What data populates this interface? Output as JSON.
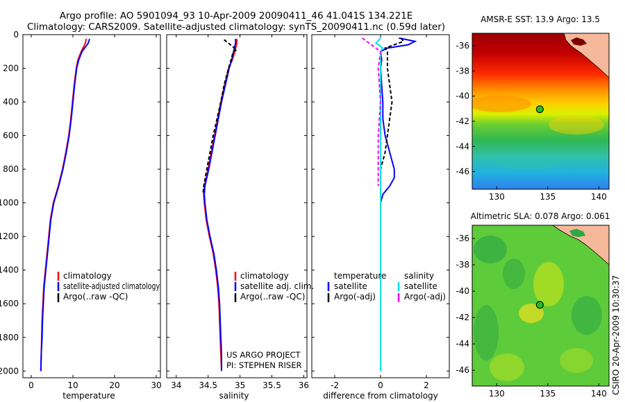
{
  "header": {
    "line1": "Argo profile: AO 5901094_93 10-Apr-2009 20090411_46 41.041S 134.221E",
    "line2": "Climatology: CARS2009. Satellite-adjusted climatology: synTS_20090411.nc (0.59d later)"
  },
  "side_label": "CSIRO 20-Apr-2009 10:30:37",
  "colors": {
    "climatology": "#ff0000",
    "satellite": "#0000ff",
    "argo": "#000000",
    "salinity_satellite": "#00e0e0",
    "salinity_argo": "#ff00ff",
    "land": "#f5b89a",
    "float_marker": "#20c020"
  },
  "depth_axis": {
    "ticks": [
      "0",
      "200",
      "400",
      "600",
      "800",
      "1000",
      "1200",
      "1400",
      "1600",
      "1800",
      "2000"
    ]
  },
  "chart_data": [
    {
      "id": "temperature",
      "type": "line",
      "xlabel": "temperature",
      "xlim": [
        -2,
        31
      ],
      "ylim": [
        0,
        2040
      ],
      "xticks": [
        "0",
        "10",
        "20",
        "30"
      ],
      "legend": [
        "climatology",
        "satellite-adjusted climatology",
        "Argo(..raw -QC)"
      ],
      "series": [
        {
          "name": "climatology",
          "color": "#ff0000",
          "depth": [
            25,
            50,
            80,
            100,
            150,
            200,
            300,
            400,
            500,
            600,
            700,
            800,
            900,
            1000,
            1100,
            1200,
            1300,
            1400,
            1500,
            1600,
            1700,
            1800,
            1900,
            2000
          ],
          "values": [
            13.2,
            13.0,
            12.4,
            12.0,
            11.2,
            10.8,
            10.3,
            9.9,
            9.5,
            9.0,
            8.3,
            7.5,
            6.5,
            5.3,
            4.6,
            4.2,
            3.8,
            3.4,
            3.0,
            2.8,
            2.6,
            2.5,
            2.4,
            2.3
          ]
        },
        {
          "name": "satellite-adjusted climatology",
          "color": "#0000ff",
          "depth": [
            25,
            50,
            80,
            100,
            150,
            200,
            300,
            400,
            500,
            600,
            700,
            800,
            900,
            1000,
            1100,
            1200,
            1300,
            1400,
            1500,
            1600,
            1700,
            1800,
            1900,
            2000
          ],
          "values": [
            14.0,
            13.7,
            12.8,
            12.2,
            11.4,
            10.9,
            10.4,
            10.0,
            9.6,
            9.1,
            8.4,
            7.6,
            6.6,
            5.4,
            4.7,
            4.3,
            3.9,
            3.5,
            3.1,
            2.9,
            2.7,
            2.6,
            2.4,
            2.3
          ]
        },
        {
          "name": "Argo(..raw -QC)",
          "color": "#000000",
          "depth": [],
          "values": []
        }
      ]
    },
    {
      "id": "salinity",
      "type": "line",
      "xlabel": "salinity",
      "xlim": [
        33.85,
        36.05
      ],
      "ylim": [
        0,
        2040
      ],
      "xticks": [
        "34",
        "34.5",
        "35",
        "35.5",
        "36"
      ],
      "legend": [
        "climatology",
        "satellite adj. clim.",
        "Argo(..raw -QC)"
      ],
      "annotation": [
        "US ARGO PROJECT",
        "PI: STEPHEN RISER"
      ],
      "series": [
        {
          "name": "climatology",
          "color": "#ff0000",
          "depth": [
            25,
            50,
            100,
            150,
            200,
            300,
            400,
            500,
            600,
            700,
            800,
            900,
            950,
            1000,
            1100,
            1200,
            1300,
            1400,
            1500,
            1600,
            1700,
            1800,
            1900,
            2000
          ],
          "values": [
            34.95,
            34.95,
            34.92,
            34.88,
            34.82,
            34.76,
            34.7,
            34.65,
            34.6,
            34.55,
            34.5,
            34.44,
            34.43,
            34.44,
            34.47,
            34.52,
            34.58,
            34.62,
            34.65,
            34.67,
            34.68,
            34.69,
            34.7,
            34.71
          ]
        },
        {
          "name": "satellite adj. clim.",
          "color": "#0000ff",
          "depth": [
            25,
            50,
            100,
            150,
            200,
            300,
            400,
            500,
            600,
            700,
            800,
            900,
            950,
            1000,
            1100,
            1200,
            1300,
            1400,
            1500,
            1600,
            1700,
            1800,
            1900,
            2000
          ],
          "values": [
            34.93,
            34.93,
            34.9,
            34.87,
            34.83,
            34.77,
            34.71,
            34.66,
            34.61,
            34.56,
            34.51,
            34.45,
            34.44,
            34.45,
            34.48,
            34.53,
            34.59,
            34.63,
            34.66,
            34.68,
            34.69,
            34.7,
            34.71,
            34.71
          ]
        },
        {
          "name": "Argo(..raw -QC)",
          "color": "#000000",
          "dash": true,
          "depth": [
            30,
            60,
            90,
            100,
            120,
            150,
            200,
            300,
            400,
            500,
            600,
            700,
            800,
            900,
            950
          ],
          "values": [
            34.75,
            34.85,
            34.95,
            34.9,
            34.88,
            34.86,
            34.82,
            34.75,
            34.7,
            34.64,
            34.58,
            34.53,
            34.48,
            34.43,
            34.42
          ]
        }
      ]
    },
    {
      "id": "difference",
      "type": "line",
      "xlabel": "difference from climatology",
      "xlim": [
        -3,
        3
      ],
      "ylim": [
        0,
        2040
      ],
      "xticks": [
        "-2",
        "0",
        "2"
      ],
      "legend_temperature": {
        "title": "temperature",
        "items": [
          "satellite",
          "Argo(-adj)"
        ]
      },
      "legend_salinity": {
        "title": "salinity",
        "items": [
          "satellite",
          "Argo(-adj)"
        ]
      },
      "series": [
        {
          "name": "temperature satellite",
          "color": "#0000ff",
          "depth": [
            20,
            40,
            60,
            80,
            100,
            150,
            200,
            300,
            400,
            500,
            600,
            700,
            800,
            850,
            900,
            950,
            1000,
            1200,
            1600,
            2000
          ],
          "values": [
            0.8,
            1.5,
            1.2,
            0.3,
            0.0,
            0.05,
            0.0,
            0.05,
            0.1,
            0.1,
            0.2,
            0.4,
            0.6,
            0.6,
            0.4,
            0.1,
            0.0,
            0.0,
            0.0,
            0.0
          ]
        },
        {
          "name": "temperature Argo(-adj)",
          "color": "#000000",
          "dash": true,
          "depth": [
            20,
            40,
            60,
            80,
            100,
            200,
            300,
            400,
            500,
            600,
            700,
            750,
            800
          ],
          "values": [
            0.9,
            1.0,
            0.6,
            0.2,
            0.3,
            0.3,
            0.4,
            0.5,
            0.4,
            0.3,
            0.2,
            0.1,
            0.0
          ]
        },
        {
          "name": "salinity satellite",
          "color": "#00e0e0",
          "depth": [
            20,
            50,
            80,
            100,
            200,
            400,
            800,
            1200,
            1600,
            2000
          ],
          "values": [
            0.0,
            -0.2,
            0.1,
            0.0,
            0.0,
            0.0,
            0.0,
            0.0,
            0.0,
            0.0
          ]
        },
        {
          "name": "salinity Argo(-adj)",
          "color": "#ff00ff",
          "dash": true,
          "depth": [
            20,
            60,
            100,
            200,
            400,
            600,
            800,
            900
          ],
          "values": [
            -0.8,
            -0.4,
            0.0,
            -0.1,
            0.0,
            -0.1,
            -0.1,
            -0.1
          ]
        }
      ]
    },
    {
      "id": "sst_map",
      "type": "heatmap",
      "title": "AMSR-E SST: 13.9 Argo: 13.5",
      "xlim": [
        127.6,
        141.0
      ],
      "ylim": [
        -47.4,
        -35.0
      ],
      "xticks": [
        130,
        135,
        140
      ],
      "yticks": [
        -36,
        -38,
        -40,
        -42,
        -44,
        -46
      ],
      "float_position": {
        "lon": 134.221,
        "lat": -41.041
      }
    },
    {
      "id": "sla_map",
      "type": "heatmap",
      "title": "Altimetric SLA: 0.078 Argo: 0.061",
      "xlim": [
        127.6,
        141.0
      ],
      "ylim": [
        -47.2,
        -35.0
      ],
      "xticks": [
        130,
        135,
        140
      ],
      "yticks": [
        -36,
        -38,
        -40,
        -42,
        -44,
        -46
      ],
      "float_position": {
        "lon": 134.221,
        "lat": -41.041
      }
    }
  ]
}
